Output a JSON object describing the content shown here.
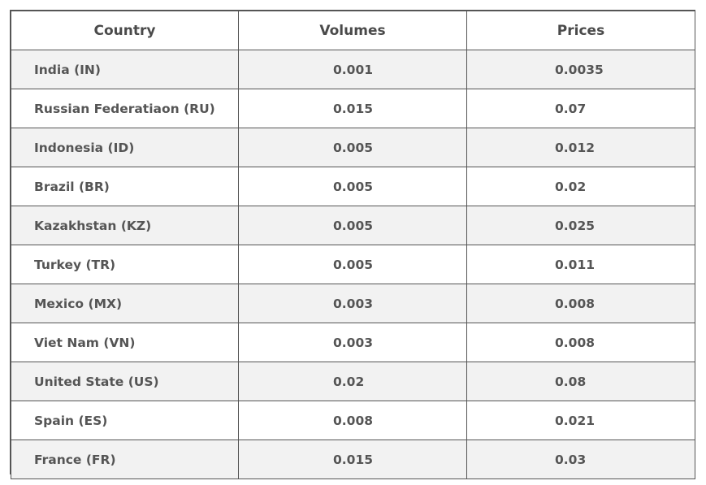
{
  "table": {
    "headers": {
      "country": "Country",
      "volumes": "Volumes",
      "prices": "Prices"
    },
    "rows": [
      {
        "country": "India (IN)",
        "volume": "0.001",
        "price": "0.0035"
      },
      {
        "country": "Russian Federatiaon (RU)",
        "volume": "0.015",
        "price": "0.07"
      },
      {
        "country": "Indonesia (ID)",
        "volume": "0.005",
        "price": "0.012"
      },
      {
        "country": "Brazil (BR)",
        "volume": "0.005",
        "price": "0.02"
      },
      {
        "country": "Kazakhstan (KZ)",
        "volume": "0.005",
        "price": "0.025"
      },
      {
        "country": "Turkey (TR)",
        "volume": "0.005",
        "price": "0.011"
      },
      {
        "country": "Mexico (MX)",
        "volume": "0.003",
        "price": "0.008"
      },
      {
        "country": "Viet Nam (VN)",
        "volume": "0.003",
        "price": "0.008"
      },
      {
        "country": "United State (US)",
        "volume": "0.02",
        "price": "0.08"
      },
      {
        "country": "Spain (ES)",
        "volume": "0.008",
        "price": "0.021"
      },
      {
        "country": "France (FR)",
        "volume": "0.015",
        "price": "0.03"
      }
    ]
  },
  "colors": {
    "border": "#555555",
    "text": "#555555",
    "stripe": "#f2f2f2",
    "background": "#ffffff"
  }
}
